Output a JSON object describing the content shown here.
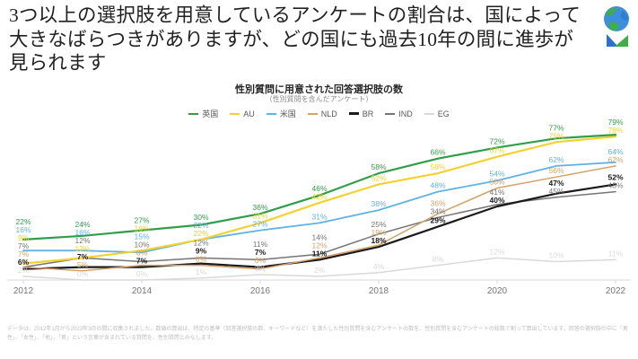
{
  "slide": {
    "title": "3つ以上の選択肢を用意しているアンケートの割合は、国によって\n大きなばらつきがありますが、どの国にも過去10年の間に進歩が\n見られます",
    "footnote": "データは、2012年1月から2023年3月の間に収集されました。数値の算出は、特定の基準（回答選択肢の数、キーワードなど）を満たした性別質問を含むアンケートの数を、性別質問を含むアンケートの総数で割って算出しています。回答の選択肢の中に「男性」、「女性」、「他」、「男」という言葉が含まれている質問を、性別質問とみなします。"
  },
  "icons": {
    "globe": "globe-icon",
    "brand": "triangle-pennant-logo-icon"
  },
  "chart_data": {
    "type": "line",
    "title": "性別質問に用意された回答選択肢の数",
    "subtitle": "（性別質問を含んだアンケート）",
    "unit": "%",
    "x": [
      2012,
      2013,
      2014,
      2015,
      2016,
      2017,
      2018,
      2019,
      2020,
      2021,
      2022
    ],
    "x_ticks": [
      2012,
      2014,
      2016,
      2018,
      2020,
      2022
    ],
    "ylim": [
      0,
      85
    ],
    "grid": false,
    "legend_position": "top",
    "axis_color": "#d9d9d9",
    "tick_label_color": "#757575",
    "series": [
      {
        "name": "英国",
        "color": "#2f9e48",
        "width": 2.2,
        "bold": false,
        "values": [
          22,
          24,
          27,
          30,
          36,
          46,
          58,
          66,
          72,
          77,
          79
        ]
      },
      {
        "name": "AU",
        "color": "#f2d22e",
        "width": 2.2,
        "bold": false,
        "values": [
          9,
          12,
          16,
          22,
          31,
          42,
          52,
          58,
          67,
          75,
          78
        ]
      },
      {
        "name": "米国",
        "color": "#5eb3e4",
        "width": 1.8,
        "bold": false,
        "values": [
          16,
          16,
          15,
          22,
          27,
          31,
          38,
          48,
          54,
          62,
          64
        ]
      },
      {
        "name": "NLD",
        "color": "#d2a269",
        "width": 1.5,
        "bold": false,
        "values": [
          7,
          5,
          8,
          8,
          6,
          12,
          19,
          36,
          50,
          56,
          62
        ]
      },
      {
        "name": "BR",
        "color": "#1a1a1a",
        "width": 2.2,
        "bold": true,
        "values": [
          6,
          7,
          7,
          9,
          7,
          11,
          18,
          29,
          40,
          47,
          52
        ]
      },
      {
        "name": "IND",
        "color": "#757575",
        "width": 1.5,
        "bold": false,
        "values": [
          7,
          12,
          10,
          12,
          11,
          14,
          25,
          34,
          41,
          45,
          48
        ]
      },
      {
        "name": "EG",
        "color": "#d9d9d9",
        "width": 1.5,
        "bold": false,
        "values": [
          2,
          0,
          0,
          1,
          3,
          2,
          4,
          8,
          12,
          10,
          11
        ]
      }
    ]
  }
}
